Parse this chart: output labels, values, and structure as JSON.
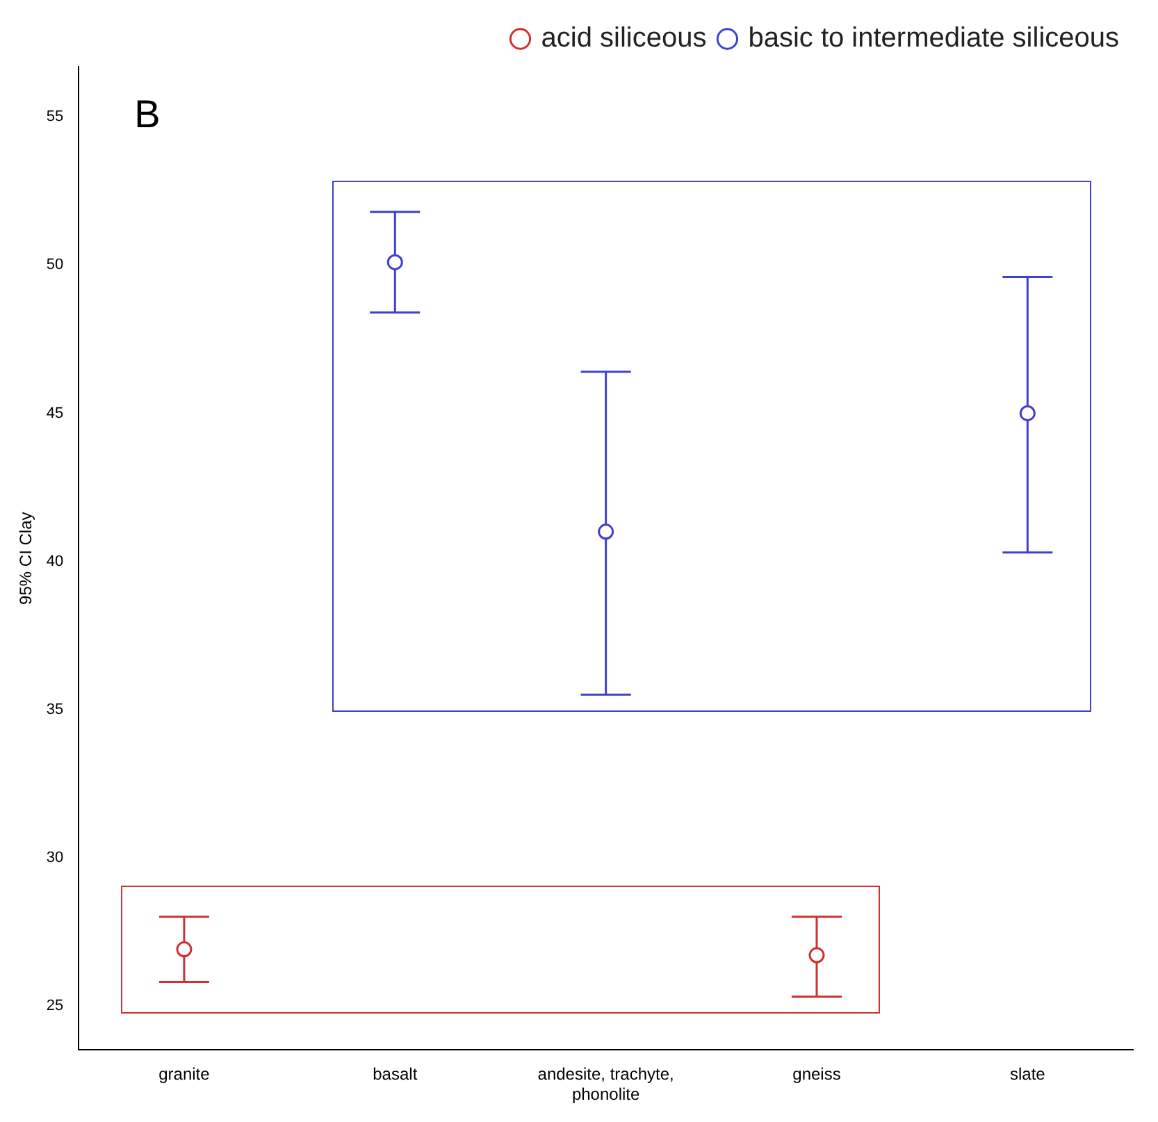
{
  "chart_data": {
    "type": "scatter",
    "categories": [
      "granite",
      "basalt",
      "andesite, trachyte, phonolite",
      "gneiss",
      "slate"
    ],
    "ylabel": "95% CI Clay",
    "ylim": [
      23.5,
      56.7
    ],
    "yticks": [
      25,
      30,
      35,
      40,
      45,
      50,
      55
    ],
    "grid": false,
    "legend": "top right",
    "marker": "circle",
    "annotations": [
      "B"
    ],
    "series": [
      {
        "name": "acid siliceous",
        "color": "#d03030",
        "x": [
          "granite",
          "gneiss"
        ],
        "values": [
          26.9,
          26.7
        ],
        "errors": [
          [
            25.8,
            28.0
          ],
          [
            25.3,
            28.0
          ]
        ]
      },
      {
        "name": "basic to intermediate siliceous",
        "color": "#4040d0",
        "x": [
          "basalt",
          "andesite, trachyte, phonolite",
          "slate"
        ],
        "values": [
          50.1,
          41.0,
          45.0
        ],
        "errors": [
          [
            48.4,
            51.8
          ],
          [
            35.5,
            46.4
          ],
          [
            40.3,
            49.6
          ]
        ]
      }
    ]
  }
}
